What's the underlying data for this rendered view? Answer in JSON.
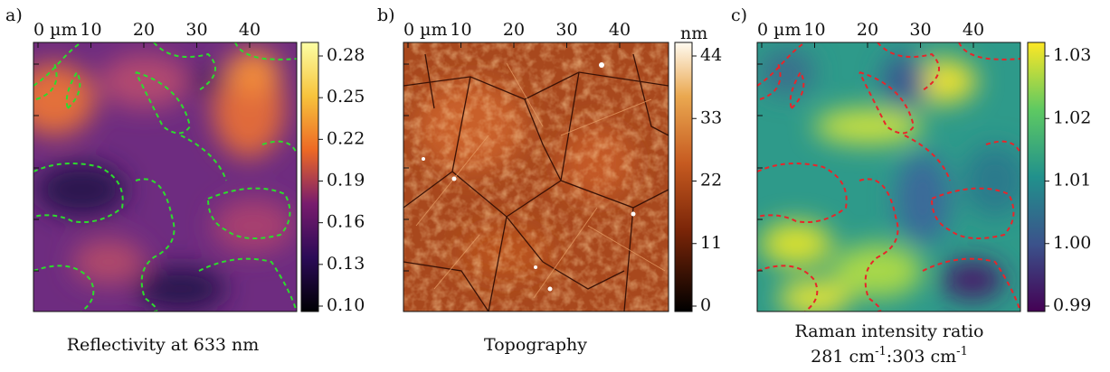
{
  "panels": [
    {
      "label": "a)",
      "xticks": [
        "0 µm",
        "10",
        "20",
        "30",
        "40"
      ],
      "colorbar": {
        "ticks": [
          "0.28",
          "0.25",
          "0.22",
          "0.19",
          "0.16",
          "0.13",
          "0.10"
        ]
      },
      "caption": [
        [
          "Reflectivity at 633 nm"
        ]
      ]
    },
    {
      "label": "b)",
      "xticks": [
        "0 µm",
        "10",
        "20",
        "30",
        "40"
      ],
      "colorbar": {
        "unit": "nm",
        "ticks": [
          "44",
          "33",
          "22",
          "11",
          "0"
        ]
      },
      "caption": [
        [
          "Topography"
        ]
      ]
    },
    {
      "label": "c)",
      "xticks": [
        "0 µm",
        "10",
        "20",
        "30",
        "40"
      ],
      "colorbar": {
        "ticks": [
          "1.03",
          "1.02",
          "1.01",
          "1.00",
          "0.99"
        ]
      },
      "caption": [
        [
          "Raman intensity ratio"
        ],
        [
          "281 cm",
          "-1",
          ":303 cm",
          "-1"
        ]
      ]
    }
  ]
}
